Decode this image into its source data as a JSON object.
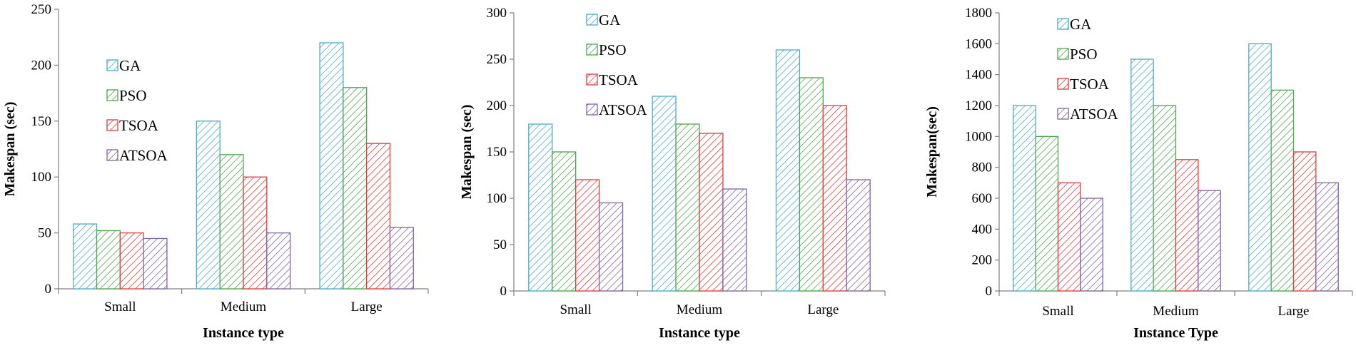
{
  "chart_data": [
    {
      "type": "bar",
      "title": "",
      "xlabel": "Instance type",
      "ylabel": "Makespan  (sec)",
      "categories": [
        "Small",
        "Medium",
        "Large"
      ],
      "ylim": [
        0,
        250
      ],
      "yticks": [
        0,
        50,
        100,
        150,
        200,
        250
      ],
      "series": [
        {
          "name": "GA",
          "values": [
            58,
            150,
            220
          ]
        },
        {
          "name": "PSO",
          "values": [
            52,
            120,
            180
          ]
        },
        {
          "name": "TSOA",
          "values": [
            50,
            100,
            130
          ]
        },
        {
          "name": "ATSOA",
          "values": [
            45,
            50,
            55
          ]
        }
      ],
      "legend": "upper-left",
      "grid": false
    },
    {
      "type": "bar",
      "title": "",
      "xlabel": "Instance type",
      "ylabel": "Makespan  (sec)",
      "categories": [
        "Small",
        "Medium",
        "Large"
      ],
      "ylim": [
        0,
        300
      ],
      "yticks": [
        0,
        50,
        100,
        150,
        200,
        250,
        300
      ],
      "series": [
        {
          "name": "GA",
          "values": [
            180,
            210,
            260
          ]
        },
        {
          "name": "PSO",
          "values": [
            150,
            180,
            230
          ]
        },
        {
          "name": "TSOA",
          "values": [
            120,
            170,
            200
          ]
        },
        {
          "name": "ATSOA",
          "values": [
            95,
            110,
            120
          ]
        }
      ],
      "legend": "upper-left",
      "grid": false
    },
    {
      "type": "bar",
      "title": "",
      "xlabel": "Instance Type",
      "ylabel": "Makespan(sec)",
      "categories": [
        "Small",
        "Medium",
        "Large"
      ],
      "ylim": [
        0,
        1800
      ],
      "yticks": [
        0,
        200,
        400,
        600,
        800,
        1000,
        1200,
        1400,
        1600,
        1800
      ],
      "series": [
        {
          "name": "GA",
          "values": [
            1200,
            1500,
            1600
          ]
        },
        {
          "name": "PSO",
          "values": [
            1000,
            1200,
            1300
          ]
        },
        {
          "name": "TSOA",
          "values": [
            700,
            850,
            900
          ]
        },
        {
          "name": "ATSOA",
          "values": [
            600,
            650,
            700
          ]
        }
      ],
      "legend": "upper-left",
      "grid": false
    }
  ],
  "colors": {
    "GA": "#4bacc6",
    "PSO": "#4ea64e",
    "TSOA": "#e03b3b",
    "ATSOA": "#8064a2"
  }
}
